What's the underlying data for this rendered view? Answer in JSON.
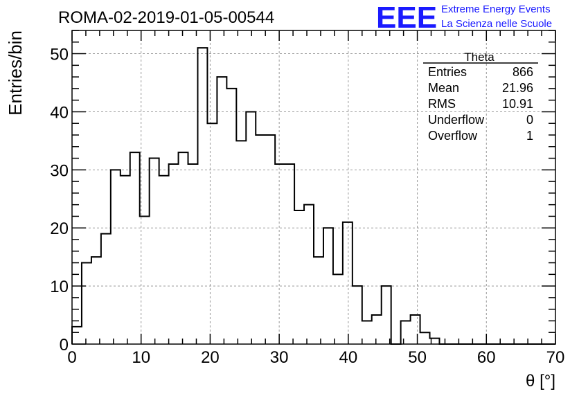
{
  "logo": {
    "mark": "EEE",
    "line1": "Extreme Energy Events",
    "line2": "La Scienza nelle Scuole",
    "color": "#1a1aff"
  },
  "chart_data": {
    "type": "histogram",
    "title": "ROMA-02-2019-01-05-00544",
    "xlabel": "θ [°]",
    "ylabel": "Entries/bin",
    "xlim": [
      0,
      70
    ],
    "ylim": [
      0,
      54
    ],
    "x_ticks": [
      0,
      10,
      20,
      30,
      40,
      50,
      60,
      70
    ],
    "y_ticks": [
      0,
      10,
      20,
      30,
      40,
      50
    ],
    "grid": true,
    "bin_width": 1.4,
    "values": [
      3,
      14,
      15,
      19,
      30,
      29,
      33,
      22,
      32,
      29,
      31,
      33,
      31,
      51,
      38,
      46,
      44,
      35,
      40,
      36,
      36,
      31,
      31,
      23,
      24,
      15,
      20,
      12,
      21,
      10,
      4,
      5,
      10,
      0,
      4,
      5,
      2,
      1,
      0,
      0,
      0,
      0,
      0,
      0,
      0,
      0,
      0,
      0,
      0,
      0
    ],
    "line_color": "#000000",
    "stats": {
      "title": "Theta",
      "rows": [
        {
          "label": "Entries",
          "value": "866"
        },
        {
          "label": "Mean",
          "value": "21.96"
        },
        {
          "label": "RMS",
          "value": "10.91"
        },
        {
          "label": "Underflow",
          "value": "0"
        },
        {
          "label": "Overflow",
          "value": "1"
        }
      ]
    }
  }
}
